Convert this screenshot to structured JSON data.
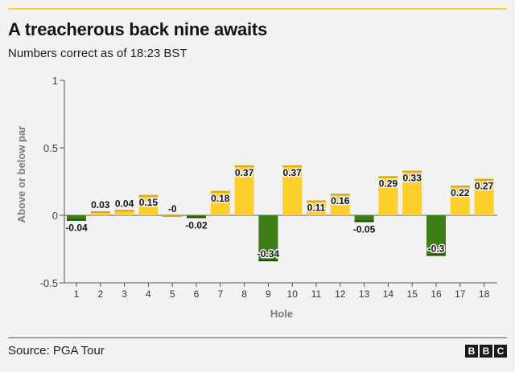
{
  "title": "A treacherous back nine awaits",
  "subtitle": "Numbers correct as of 18:23 BST",
  "source": "Source: PGA Tour",
  "logo": [
    "B",
    "B",
    "C"
  ],
  "colors": {
    "positive": "#fccf2d",
    "negative": "#3e7e16",
    "positive_cap": "#d9a90a",
    "negative_cap": "#1f4d08",
    "axis": "#555555",
    "text": "#141414"
  },
  "chart_data": {
    "type": "bar",
    "categories": [
      "1",
      "2",
      "3",
      "4",
      "5",
      "6",
      "7",
      "8",
      "9",
      "10",
      "11",
      "12",
      "13",
      "14",
      "15",
      "16",
      "17",
      "18"
    ],
    "values": [
      -0.04,
      0.03,
      0.04,
      0.15,
      0,
      -0.02,
      0.18,
      0.37,
      -0.34,
      0.37,
      0.11,
      0.16,
      -0.05,
      0.29,
      0.33,
      -0.3,
      0.22,
      0.27
    ],
    "value_labels": [
      "-0.04",
      "0.03",
      "0.04",
      "0.15",
      "-0",
      "-0.02",
      "0.18",
      "0.37",
      "-0.34",
      "0.37",
      "0.11",
      "0.16",
      "-0.05",
      "0.29",
      "0.33",
      "-0.3",
      "0.22",
      "0.27"
    ],
    "xlabel": "Hole",
    "ylabel": "Above or below par",
    "ylim": [
      -0.5,
      1
    ],
    "yticks": [
      -0.5,
      0,
      0.5,
      1
    ],
    "ytick_labels": [
      "-0.5",
      "0",
      "0.5",
      "1"
    ],
    "grid": false
  }
}
